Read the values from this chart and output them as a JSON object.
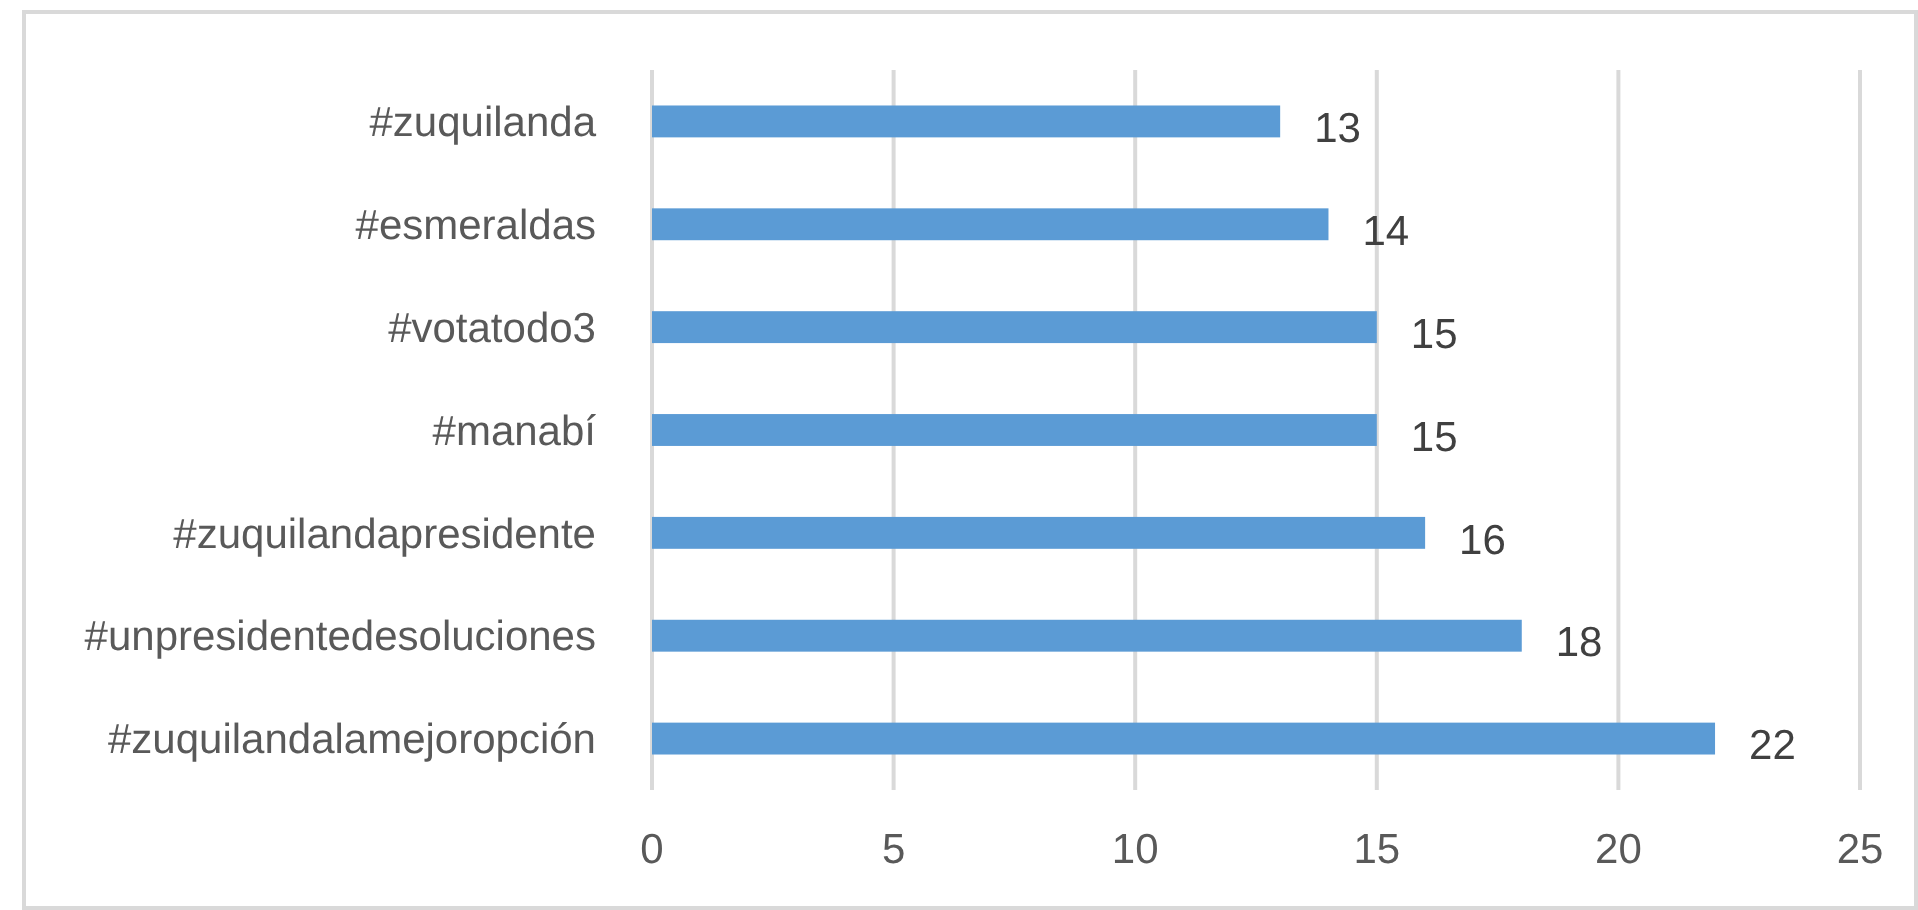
{
  "chart_data": {
    "type": "bar",
    "orientation": "horizontal",
    "categories": [
      "#zuquilanda",
      "#esmeraldas",
      "#votatodo3",
      "#manabí",
      "#zuquilandapresidente",
      "#unpresidentedesoluciones",
      "#zuquilandalamejoropción"
    ],
    "values": [
      13,
      14,
      15,
      15,
      16,
      18,
      22
    ],
    "color": "#5b9bd5",
    "xlim": [
      0,
      25
    ],
    "xticks": [
      0,
      5,
      10,
      15,
      20,
      25
    ],
    "grid": "x",
    "data_labels": true
  }
}
